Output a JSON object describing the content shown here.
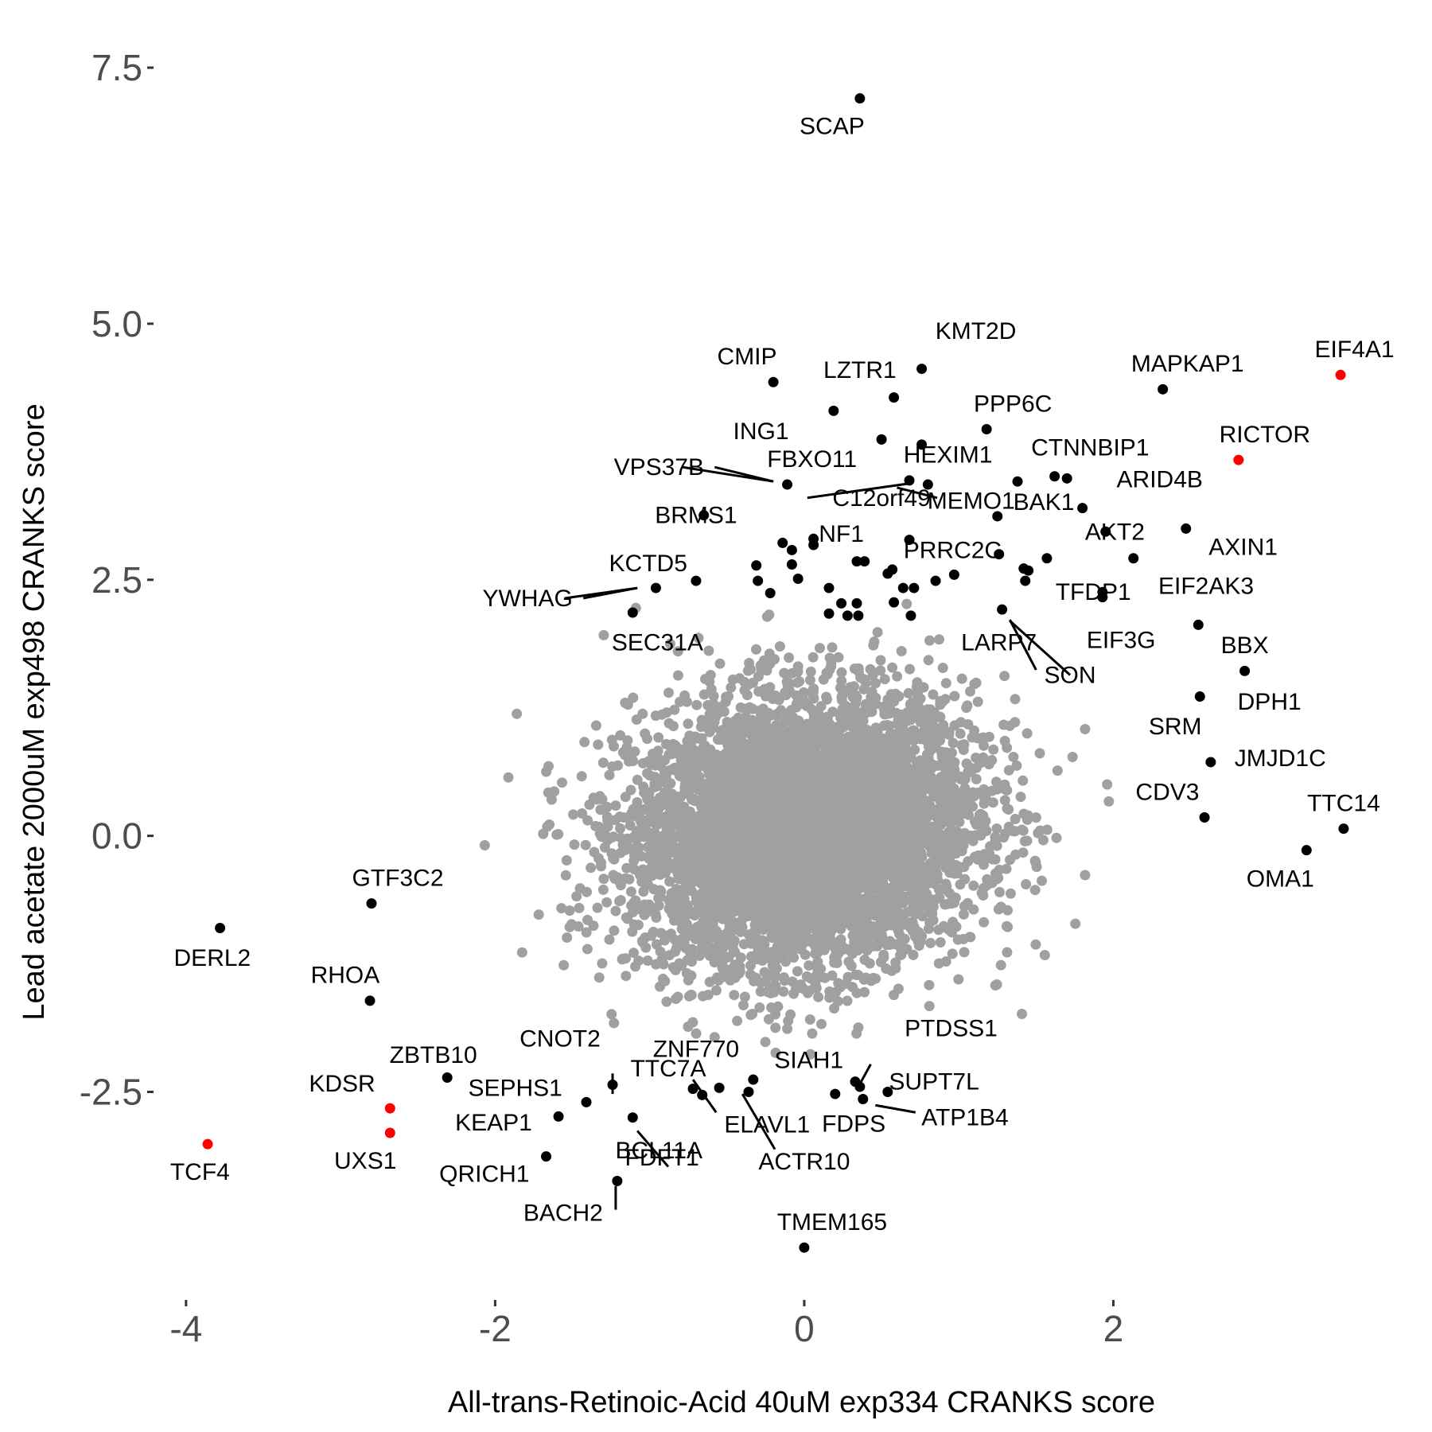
{
  "chart_data": {
    "type": "scatter",
    "xlabel": "All-trans-Retinoic-Acid 40uM exp334 CRANKS score",
    "ylabel": "Lead acetate 2000uM exp498 CRANKS score",
    "xlim": [
      -4.2,
      3.65
    ],
    "ylim": [
      -4.5,
      7.85
    ],
    "x_ticks": [
      {
        "value": -4,
        "label": "-4"
      },
      {
        "value": -2,
        "label": "-2"
      },
      {
        "value": 0,
        "label": "0"
      },
      {
        "value": 2,
        "label": "2"
      }
    ],
    "y_ticks": [
      {
        "value": -2.5,
        "label": "-2.5"
      },
      {
        "value": 0,
        "label": "0.0"
      },
      {
        "value": 2.5,
        "label": "2.5"
      },
      {
        "value": 5,
        "label": "5.0"
      },
      {
        "value": 7.5,
        "label": "7.5"
      }
    ],
    "grid": false,
    "colors": {
      "background": "#4d4d4d",
      "highlight": "#000000",
      "hit": "#ff0000",
      "leader": "#000000"
    },
    "background_points": {
      "description_count": 6000,
      "center": [
        0.0,
        0.05
      ],
      "sd": [
        0.55,
        0.65
      ],
      "correlation": 0.1
    },
    "series": [
      {
        "name": "",
        "color": "#ff0000",
        "points": [
          {
            "label": "EIF4A1",
            "x": 3.47,
            "y": 4.5
          },
          {
            "label": "RICTOR",
            "x": 2.81,
            "y": 3.67
          },
          {
            "label": "KDSR",
            "x": -2.68,
            "y": -2.66
          },
          {
            "label": "UXS1",
            "x": -2.68,
            "y": -2.9
          },
          {
            "label": "TCF4",
            "x": -3.86,
            "y": -3.01
          }
        ]
      },
      {
        "name": "",
        "color": "#000000",
        "points": [
          {
            "label": "SCAP",
            "x": 0.36,
            "y": 7.2
          },
          {
            "label": "KMT2D",
            "x": 0.76,
            "y": 4.56
          },
          {
            "label": "CMIP",
            "x": -0.2,
            "y": 4.43
          },
          {
            "label": "LZTR1",
            "x": 0.58,
            "y": 4.28
          },
          {
            "label": "ING1",
            "x": 0.19,
            "y": 4.15
          },
          {
            "label": "MAPKAP1",
            "x": 2.32,
            "y": 4.36
          },
          {
            "label": "PPP6C",
            "x": 1.18,
            "y": 3.97
          },
          {
            "label": "CTNNBIP1",
            "x": 1.62,
            "y": 3.51
          },
          {
            "label": "FBXO11",
            "x": -0.11,
            "y": 3.43
          },
          {
            "label": "HEXIM1",
            "x": 0.68,
            "y": 3.47
          },
          {
            "label": "MEMO1",
            "x": 0.8,
            "y": 3.43
          },
          {
            "label": "BAK1",
            "x": 1.25,
            "y": 3.12
          },
          {
            "label": "ARID4B",
            "x": 1.8,
            "y": 3.2
          },
          {
            "label": "AXIN1",
            "x": 2.47,
            "y": 3.0
          },
          {
            "label": "AKT2",
            "x": 1.95,
            "y": 2.97
          },
          {
            "label": "BRMS1",
            "x": -0.65,
            "y": 3.13
          },
          {
            "label": "NF1",
            "x": 0.06,
            "y": 2.9
          },
          {
            "label": "PRRC2C",
            "x": 0.68,
            "y": 2.89
          },
          {
            "label": "KCTD5",
            "x": -0.96,
            "y": 2.42
          },
          {
            "label": "SEC31A",
            "x": -1.11,
            "y": 2.18
          },
          {
            "label": "TFDP1",
            "x": 1.93,
            "y": 2.38
          },
          {
            "label": "EIF2AK3",
            "x": 2.55,
            "y": 2.06
          },
          {
            "label": "EIF3G",
            "x": 1.93,
            "y": 2.33
          },
          {
            "label": "LARP7",
            "x": 1.28,
            "y": 2.21
          },
          {
            "label": "BBX",
            "x": 2.85,
            "y": 1.61
          },
          {
            "label": "DPH1",
            "x": 2.56,
            "y": 1.36
          },
          {
            "label": "JMJD1C",
            "x": 2.63,
            "y": 0.72
          },
          {
            "label": "CDV3",
            "x": 2.59,
            "y": 0.18
          },
          {
            "label": "TTC14",
            "x": 3.49,
            "y": 0.07
          },
          {
            "label": "OMA1",
            "x": 3.25,
            "y": -0.14
          },
          {
            "label": "GTF3C2",
            "x": -2.8,
            "y": -0.66
          },
          {
            "label": "DERL2",
            "x": -3.78,
            "y": -0.9
          },
          {
            "label": "RHOA",
            "x": -2.81,
            "y": -1.61
          },
          {
            "label": "ZBTB10",
            "x": -2.31,
            "y": -2.36
          },
          {
            "label": "SEPHS1",
            "x": -1.41,
            "y": -2.6
          },
          {
            "label": "CNOT2",
            "x": -1.24,
            "y": -2.43
          },
          {
            "label": "KEAP1",
            "x": -1.59,
            "y": -2.74
          },
          {
            "label": "BCL11A",
            "x": -1.11,
            "y": -2.75
          },
          {
            "label": "QRICH1",
            "x": -1.67,
            "y": -3.13
          },
          {
            "label": "BACH2",
            "x": -1.21,
            "y": -3.37
          },
          {
            "label": "ZNF770",
            "x": -0.55,
            "y": -2.46
          },
          {
            "label": "ELAVL1",
            "x": -0.36,
            "y": -2.5
          },
          {
            "label": "ACTR10",
            "x": -0.33,
            "y": -2.38
          },
          {
            "label": "SIAH1",
            "x": 0.33,
            "y": -2.4
          },
          {
            "label": "PTDSS1",
            "x": 0.36,
            "y": -2.45
          },
          {
            "label": "SUPT7L",
            "x": 0.54,
            "y": -2.5
          },
          {
            "label": "ATP1B4",
            "x": 0.38,
            "y": -2.57
          },
          {
            "label": "FDPS",
            "x": 0.2,
            "y": -2.52
          },
          {
            "label": "TTC7A",
            "x": -0.66,
            "y": -2.53
          },
          {
            "label": "FDFT1",
            "x": -0.72,
            "y": -2.47
          },
          {
            "label": "TMEM165",
            "x": 0.0,
            "y": -4.02
          }
        ]
      }
    ],
    "extra_black_points": [
      {
        "x": -0.7,
        "y": 2.49
      },
      {
        "x": -0.31,
        "y": 2.64
      },
      {
        "x": -0.3,
        "y": 2.49
      },
      {
        "x": -0.22,
        "y": 2.37
      },
      {
        "x": -0.14,
        "y": 2.86
      },
      {
        "x": -0.08,
        "y": 2.79
      },
      {
        "x": -0.08,
        "y": 2.65
      },
      {
        "x": -0.04,
        "y": 2.51
      },
      {
        "x": 0.06,
        "y": 2.84
      },
      {
        "x": 0.16,
        "y": 2.42
      },
      {
        "x": 0.16,
        "y": 2.17
      },
      {
        "x": 0.24,
        "y": 2.27
      },
      {
        "x": 0.28,
        "y": 2.15
      },
      {
        "x": 0.34,
        "y": 2.68
      },
      {
        "x": 0.34,
        "y": 2.27
      },
      {
        "x": 0.35,
        "y": 2.15
      },
      {
        "x": 0.39,
        "y": 2.68
      },
      {
        "x": 0.54,
        "y": 2.56
      },
      {
        "x": 0.57,
        "y": 2.6
      },
      {
        "x": 0.58,
        "y": 2.28
      },
      {
        "x": 0.64,
        "y": 2.42
      },
      {
        "x": 0.69,
        "y": 2.15
      },
      {
        "x": 0.71,
        "y": 2.42
      },
      {
        "x": 0.76,
        "y": 3.82
      },
      {
        "x": 0.85,
        "y": 2.49
      },
      {
        "x": 0.97,
        "y": 2.55
      },
      {
        "x": 1.26,
        "y": 2.75
      },
      {
        "x": 1.38,
        "y": 3.46
      },
      {
        "x": 1.42,
        "y": 2.61
      },
      {
        "x": 1.45,
        "y": 2.59
      },
      {
        "x": 1.43,
        "y": 2.49
      },
      {
        "x": 1.57,
        "y": 2.71
      },
      {
        "x": 1.7,
        "y": 3.49
      },
      {
        "x": 2.13,
        "y": 2.71
      },
      {
        "x": 0.5,
        "y": 3.87
      }
    ],
    "label_placement": [
      {
        "label": "SCAP",
        "dx": -0.18,
        "dy": -0.27
      },
      {
        "label": "KMT2D",
        "dx": 0.35,
        "dy": 0.37
      },
      {
        "label": "CMIP",
        "dx": -0.17,
        "dy": 0.25
      },
      {
        "label": "LZTR1",
        "dx": -0.22,
        "dy": 0.27
      },
      {
        "label": "ING1",
        "dx": -0.47,
        "dy": -0.2
      },
      {
        "label": "MAPKAP1",
        "dx": 0.16,
        "dy": 0.25
      },
      {
        "label": "PPP6C",
        "dx": 0.17,
        "dy": 0.25
      },
      {
        "label": "CTNNBIP1",
        "dx": 0.23,
        "dy": 0.28
      },
      {
        "label": "FBXO11",
        "dx": 0.16,
        "dy": 0.25
      },
      {
        "label": "HEXIM1",
        "dx": 0.25,
        "dy": 0.25
      },
      {
        "label": "MEMO1",
        "dx": 0.28,
        "dy": -0.16
      },
      {
        "label": "BAK1",
        "dx": 0.3,
        "dy": 0.14
      },
      {
        "label": "ARID4B",
        "dx": 0.5,
        "dy": 0.28
      },
      {
        "label": "AXIN1",
        "dx": 0.37,
        "dy": -0.18
      },
      {
        "label": "AKT2",
        "dx": 0.06,
        "dy": 0.0
      },
      {
        "label": "BRMS1",
        "dx": -0.05,
        "dy": 0.0
      },
      {
        "label": "NF1",
        "dx": 0.18,
        "dy": 0.05
      },
      {
        "label": "PRRC2C",
        "dx": 0.28,
        "dy": -0.1
      },
      {
        "label": "KCTD5",
        "dx": -0.05,
        "dy": 0.24
      },
      {
        "label": "SEC31A",
        "dx": 0.16,
        "dy": -0.29
      },
      {
        "label": "TFDP1",
        "dx": -0.06,
        "dy": 0.0
      },
      {
        "label": "EIF2AK3",
        "dx": 0.05,
        "dy": 0.38
      },
      {
        "label": "EIF3G",
        "dx": 0.12,
        "dy": -0.42
      },
      {
        "label": "LARP7",
        "dx": -0.02,
        "dy": -0.32
      },
      {
        "label": "BBX",
        "dx": 0.0,
        "dy": 0.25
      },
      {
        "label": "DPH1",
        "dx": 0.45,
        "dy": -0.05
      },
      {
        "label": "JMJD1C",
        "dx": 0.45,
        "dy": 0.04
      },
      {
        "label": "CDV3",
        "dx": -0.24,
        "dy": 0.25
      },
      {
        "label": "TTC14",
        "dx": 0.0,
        "dy": 0.25
      },
      {
        "label": "OMA1",
        "dx": -0.17,
        "dy": -0.28
      },
      {
        "label": "GTF3C2",
        "dx": 0.17,
        "dy": 0.25
      },
      {
        "label": "DERL2",
        "dx": -0.05,
        "dy": -0.29
      },
      {
        "label": "RHOA",
        "dx": -0.16,
        "dy": 0.25
      },
      {
        "label": "ZBTB10",
        "dx": -0.09,
        "dy": 0.22
      },
      {
        "label": "SEPHS1",
        "dx": -0.46,
        "dy": 0.14
      },
      {
        "label": "CNOT2",
        "dx": -0.34,
        "dy": 0.45
      },
      {
        "label": "KEAP1",
        "dx": -0.42,
        "dy": -0.06
      },
      {
        "label": "BCL11A",
        "dx": 0.17,
        "dy": -0.32
      },
      {
        "label": "QRICH1",
        "dx": -0.4,
        "dy": -0.17
      },
      {
        "label": "BACH2",
        "dx": -0.35,
        "dy": -0.31
      },
      {
        "label": "ZNF770",
        "dx": -0.15,
        "dy": 0.38
      },
      {
        "label": "ELAVL1",
        "dx": 0.12,
        "dy": -0.32
      },
      {
        "label": "ACTR10",
        "dx": 0.33,
        "dy": -0.8
      },
      {
        "label": "SIAH1",
        "dx": -0.3,
        "dy": 0.21
      },
      {
        "label": "PTDSS1",
        "dx": 0.59,
        "dy": 0.57
      },
      {
        "label": "SUPT7L",
        "dx": 0.3,
        "dy": 0.1
      },
      {
        "label": "ATP1B4",
        "dx": 0.66,
        "dy": -0.18
      },
      {
        "label": "FDPS",
        "dx": 0.12,
        "dy": -0.29
      },
      {
        "label": "TTC7A",
        "dx": -0.22,
        "dy": 0.26
      },
      {
        "label": "FDFT1",
        "dx": -0.2,
        "dy": -0.67
      },
      {
        "label": "TMEM165",
        "dx": 0.18,
        "dy": 0.25
      },
      {
        "label": "EIF4A1",
        "dx": 0.09,
        "dy": 0.25
      },
      {
        "label": "RICTOR",
        "dx": 0.17,
        "dy": 0.25
      },
      {
        "label": "KDSR",
        "dx": -0.31,
        "dy": 0.24
      },
      {
        "label": "UXS1",
        "dx": -0.16,
        "dy": -0.27
      },
      {
        "label": "TCF4",
        "dx": -0.05,
        "dy": -0.27
      },
      {
        "label": "VPS37B",
        "dx": 0.0,
        "dy": 0.0
      },
      {
        "label": "C12orf49",
        "dx": 0.0,
        "dy": 0.0
      },
      {
        "label": "YWHAG",
        "dx": 0.0,
        "dy": 0.0
      },
      {
        "label": "SON",
        "dx": 0.0,
        "dy": 0.0
      },
      {
        "label": "SRM",
        "dx": 0.0,
        "dy": 0.0
      }
    ],
    "leader_labels": [
      {
        "label": "VPS37B",
        "x": -0.94,
        "y": 3.6,
        "to": [
          -0.2,
          3.46
        ]
      },
      {
        "label": "C12orf49",
        "x": 0.5,
        "y": 3.3,
        "to": [
          0.6,
          3.4
        ]
      },
      {
        "label": "YWHAG",
        "x": -1.79,
        "y": 2.32,
        "to": [
          -1.08,
          2.42
        ]
      },
      {
        "label": "SON",
        "x": 1.72,
        "y": 1.57,
        "to": [
          1.33,
          2.1
        ]
      },
      {
        "label": "SRM",
        "x": 2.4,
        "y": 1.07,
        "to": [
          2.4,
          1.07
        ]
      }
    ]
  }
}
